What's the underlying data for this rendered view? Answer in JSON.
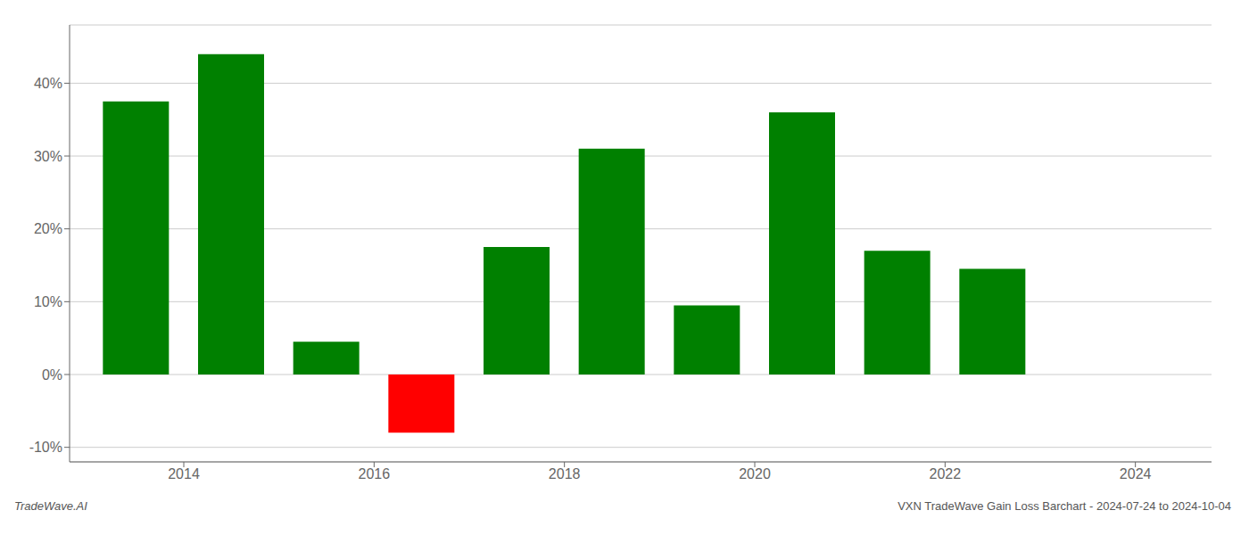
{
  "chart_data": {
    "type": "bar",
    "x": [
      2013.5,
      2014.5,
      2015.5,
      2016.5,
      2017.5,
      2018.5,
      2019.5,
      2020.5,
      2021.5,
      2022.5
    ],
    "values": [
      37.5,
      44.0,
      4.5,
      -8.0,
      17.5,
      31.0,
      9.5,
      36.0,
      17.0,
      14.5
    ],
    "colors": [
      "#008000",
      "#008000",
      "#008000",
      "#ff0000",
      "#008000",
      "#008000",
      "#008000",
      "#008000",
      "#008000",
      "#008000"
    ],
    "xlim": [
      2012.8,
      2024.8
    ],
    "xticks": [
      2014,
      2016,
      2018,
      2020,
      2022,
      2024
    ],
    "ylim": [
      -12,
      48
    ],
    "yticks": [
      {
        "value": -10,
        "label": "-10%"
      },
      {
        "value": 0,
        "label": "0%"
      },
      {
        "value": 10,
        "label": "10%"
      },
      {
        "value": 20,
        "label": "20%"
      },
      {
        "value": 30,
        "label": "30%"
      },
      {
        "value": 40,
        "label": "40%"
      }
    ],
    "grid": true,
    "annotations": [
      "TradeWave.AI",
      "VXN TradeWave Gain Loss Barchart - 2024-07-24 to 2024-10-04"
    ]
  }
}
